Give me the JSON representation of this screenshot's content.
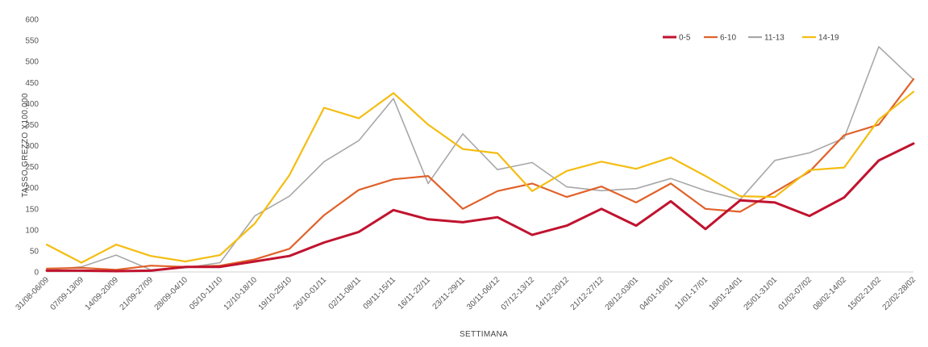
{
  "chart_data": {
    "type": "line",
    "xlabel": "SETTIMANA",
    "ylabel": "TASSO GREZZO X100.000",
    "ylim": [
      0,
      600
    ],
    "yticks": [
      0,
      50,
      100,
      150,
      200,
      250,
      300,
      350,
      400,
      450,
      500,
      550,
      600
    ],
    "grid": false,
    "legend_position": "top-right",
    "categories": [
      "31/08-06/09",
      "07/09-13/09",
      "14/09-20/09",
      "21/09-27/09",
      "28/09-04/10",
      "05/10-11/10",
      "12/10-18/10",
      "19/10-25/10",
      "26/10-01/11",
      "02/11-08/11",
      "09/11-15/11",
      "16/11-22/11",
      "23/11-29/11",
      "30/11-06/12",
      "07/12-13/12",
      "14/12-20/12",
      "21/12-27/12",
      "28/12-03/01",
      "04/01-10/01",
      "11/01-17/01",
      "18/01-24/01",
      "25/01-31/01",
      "01/02-07/02",
      "08/02-14/02",
      "15/02-21/02",
      "22/02-28/02"
    ],
    "series": [
      {
        "name": "0-5",
        "color": "#c0132f",
        "values": [
          3,
          3,
          2,
          3,
          12,
          12,
          25,
          38,
          70,
          95,
          147,
          125,
          118,
          130,
          88,
          110,
          150,
          110,
          168,
          102,
          170,
          165,
          133,
          177,
          265,
          305
        ]
      },
      {
        "name": "6-10",
        "color": "#e0622a",
        "values": [
          8,
          10,
          5,
          15,
          12,
          15,
          30,
          55,
          135,
          195,
          220,
          228,
          150,
          192,
          210,
          178,
          203,
          165,
          210,
          150,
          143,
          190,
          238,
          325,
          350,
          458
        ]
      },
      {
        "name": "11-13",
        "color": "#a8a8a8",
        "values": [
          5,
          12,
          40,
          5,
          10,
          22,
          133,
          180,
          262,
          312,
          412,
          210,
          328,
          243,
          260,
          202,
          193,
          198,
          222,
          193,
          172,
          265,
          283,
          318,
          535,
          457
        ]
      },
      {
        "name": "14-19",
        "color": "#f4bd12",
        "values": [
          65,
          22,
          65,
          38,
          25,
          40,
          115,
          230,
          390,
          365,
          425,
          350,
          292,
          282,
          192,
          240,
          262,
          245,
          272,
          228,
          180,
          178,
          242,
          248,
          362,
          428
        ]
      }
    ]
  }
}
